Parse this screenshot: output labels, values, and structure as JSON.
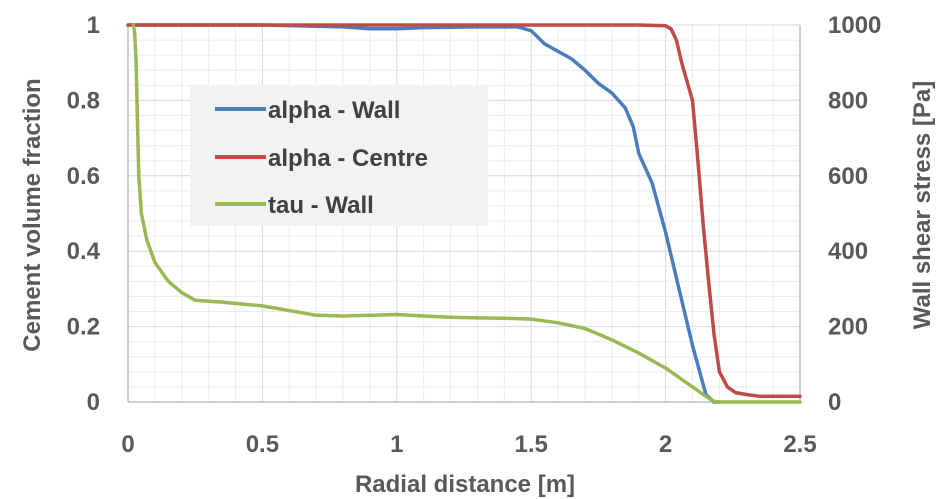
{
  "chart_data": {
    "type": "line",
    "xlabel": "Radial distance [m]",
    "ylabel_left": "Cement volume fraction",
    "ylabel_right": "Wall shear stress [Pa]",
    "xlim": [
      0,
      2.5
    ],
    "ylim_left": [
      0,
      1
    ],
    "ylim_right": [
      0,
      1000
    ],
    "x_ticks": [
      "0",
      "0.5",
      "1",
      "1.5",
      "2",
      "2.5"
    ],
    "y_ticks_left": [
      "0",
      "0.2",
      "0.4",
      "0.6",
      "0.8",
      "1"
    ],
    "y_ticks_right": [
      "0",
      "200",
      "400",
      "600",
      "800",
      "1000"
    ],
    "grid": true,
    "legend_position": "top-left",
    "series": [
      {
        "name": "alpha - Wall",
        "axis": "left",
        "color": "#4a7ebb",
        "x": [
          0,
          0.5,
          0.8,
          0.9,
          1.0,
          1.1,
          1.3,
          1.45,
          1.5,
          1.55,
          1.6,
          1.65,
          1.7,
          1.75,
          1.8,
          1.85,
          1.88,
          1.9,
          1.95,
          2.0,
          2.05,
          2.1,
          2.15,
          2.18,
          2.2
        ],
        "y": [
          1.0,
          1.0,
          0.995,
          0.99,
          0.99,
          0.993,
          0.995,
          0.995,
          0.985,
          0.95,
          0.93,
          0.91,
          0.88,
          0.845,
          0.82,
          0.78,
          0.73,
          0.66,
          0.58,
          0.45,
          0.3,
          0.15,
          0.02,
          0.0,
          0.0
        ]
      },
      {
        "name": "alpha - Centre",
        "axis": "left",
        "color": "#be4b48",
        "x": [
          0,
          1.0,
          1.5,
          1.9,
          2.0,
          2.02,
          2.04,
          2.06,
          2.08,
          2.1,
          2.12,
          2.14,
          2.16,
          2.18,
          2.2,
          2.23,
          2.26,
          2.3,
          2.35,
          2.4,
          2.5
        ],
        "y": [
          1.0,
          1.0,
          1.0,
          1.0,
          0.998,
          0.99,
          0.96,
          0.9,
          0.85,
          0.8,
          0.64,
          0.47,
          0.32,
          0.18,
          0.08,
          0.04,
          0.025,
          0.02,
          0.015,
          0.015,
          0.015
        ]
      },
      {
        "name": "tau - Wall",
        "axis": "right",
        "color": "#98b954",
        "x": [
          0.02,
          0.025,
          0.03,
          0.035,
          0.04,
          0.05,
          0.07,
          0.1,
          0.15,
          0.2,
          0.25,
          0.35,
          0.5,
          0.7,
          0.8,
          0.9,
          1.0,
          1.1,
          1.2,
          1.3,
          1.4,
          1.5,
          1.6,
          1.7,
          1.8,
          1.9,
          2.0,
          2.1,
          2.15,
          2.18,
          2.2,
          2.3,
          2.4,
          2.5
        ],
        "y": [
          1000,
          980,
          900,
          750,
          600,
          500,
          430,
          370,
          320,
          290,
          270,
          265,
          255,
          230,
          228,
          230,
          232,
          228,
          225,
          223,
          222,
          220,
          210,
          195,
          165,
          130,
          90,
          40,
          15,
          2,
          0,
          0,
          0,
          0
        ]
      }
    ]
  }
}
